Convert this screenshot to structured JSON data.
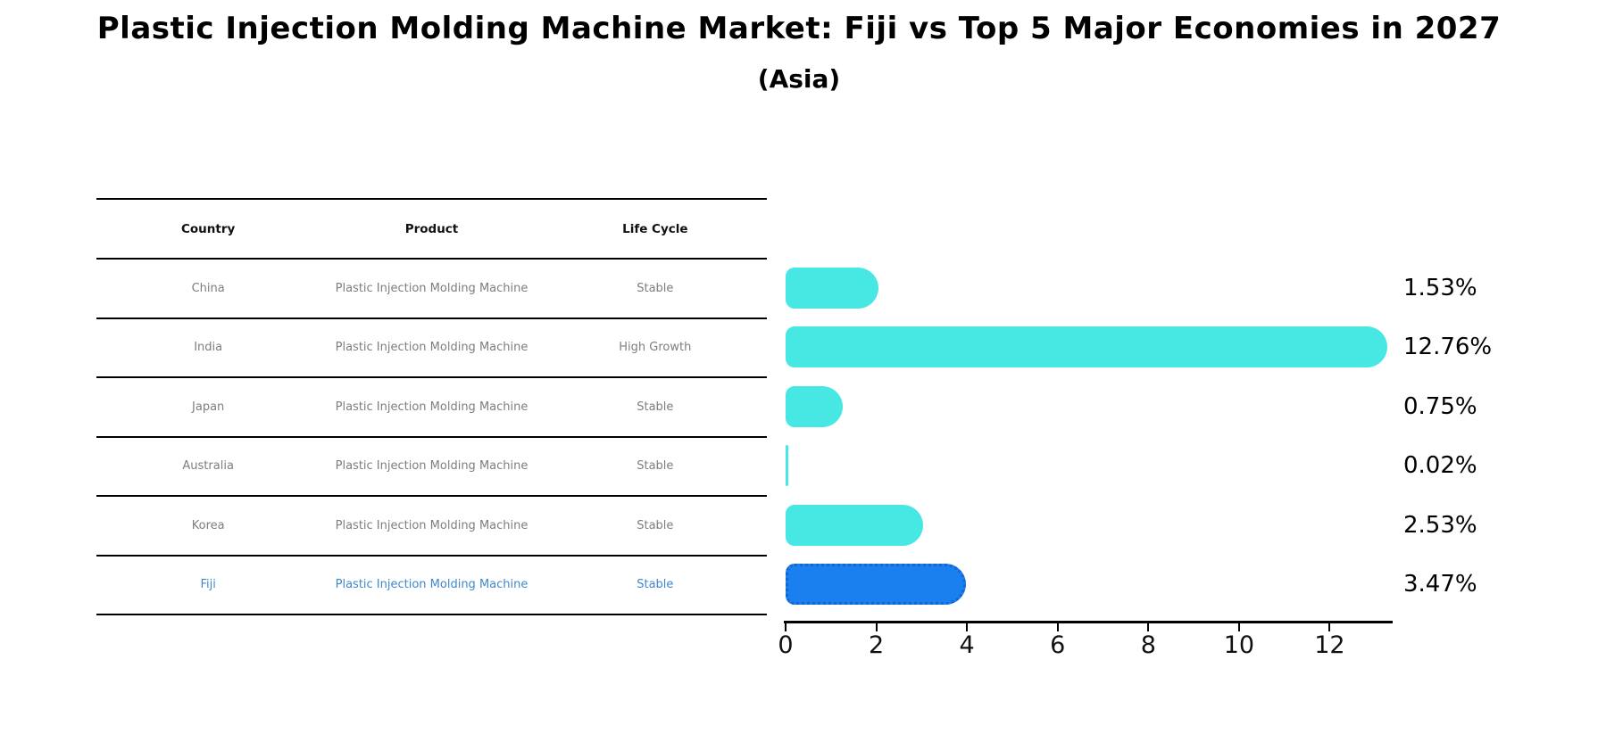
{
  "title": "Plastic Injection Molding Machine Market: Fiji vs Top 5 Major Economies in 2027",
  "subtitle": "(Asia)",
  "table": {
    "headers": [
      "Country",
      "Product",
      "Life Cycle"
    ],
    "rows": [
      {
        "country": "China",
        "product": "Plastic Injection Molding Machine",
        "life_cycle": "Stable"
      },
      {
        "country": "India",
        "product": "Plastic Injection Molding Machine",
        "life_cycle": "High Growth"
      },
      {
        "country": "Japan",
        "product": "Plastic Injection Molding Machine",
        "life_cycle": "Stable"
      },
      {
        "country": "Australia",
        "product": "Plastic Injection Molding Machine",
        "life_cycle": "Stable"
      },
      {
        "country": "Korea",
        "product": "Plastic Injection Molding Machine",
        "life_cycle": "Stable"
      },
      {
        "country": "Fiji",
        "product": "Plastic Injection Molding Machine",
        "life_cycle": "Stable"
      }
    ],
    "highlight_row": "Fiji"
  },
  "chart_data": {
    "type": "bar",
    "orientation": "horizontal",
    "title": "Plastic Injection Molding Machine Market: Fiji vs Top 5 Major Economies in 2027",
    "subtitle": "(Asia)",
    "categories": [
      "China",
      "India",
      "Japan",
      "Australia",
      "Korea",
      "Fiji"
    ],
    "values": [
      1.53,
      12.76,
      0.75,
      0.02,
      2.53,
      3.47
    ],
    "value_labels": [
      "1.53%",
      "12.76%",
      "0.75%",
      "0.02%",
      "2.53%",
      "3.47%"
    ],
    "x_ticks": [
      "0",
      "2",
      "4",
      "6",
      "8",
      "10",
      "12"
    ],
    "xlim": [
      0,
      13.33
    ],
    "grid": false,
    "legend": false,
    "highlight_index": 5,
    "colors": {
      "bar": "#47e7e3",
      "highlight_bar": "#1a80f0",
      "highlight_border": "#1565cd",
      "highlight_text": "#3f88cc",
      "cell_text": "#7e7e7e",
      "axis": "#000000",
      "label_text": "#000000"
    }
  }
}
